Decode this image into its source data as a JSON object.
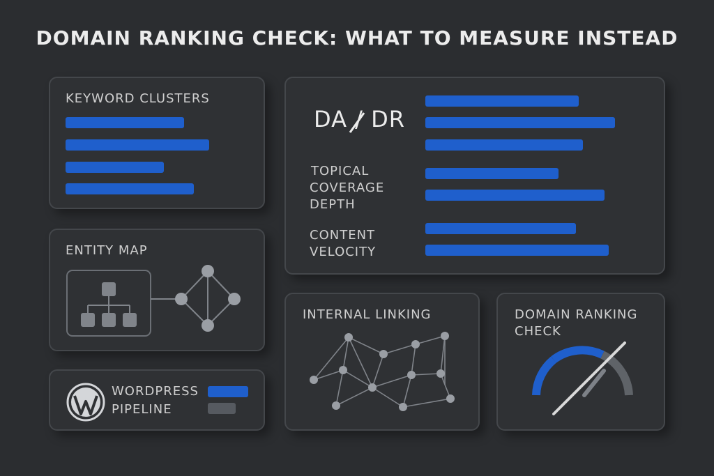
{
  "title": "DOMAIN RANKING CHECK: WHAT TO MEASURE INSTEAD",
  "colors": {
    "background": "#2b2d30",
    "card": "#2f3134",
    "accent": "#1f5fcc",
    "muted": "#9a9ea4"
  },
  "keyword_clusters": {
    "label": "KEYWORD CLUSTERS"
  },
  "entity_map": {
    "label": "ENTITY MAP"
  },
  "wordpress": {
    "label_line1": "WORDPRESS",
    "label_line2": "PIPELINE",
    "icon": "wordpress-logo-icon"
  },
  "metrics": {
    "da_dr": "DA / DR",
    "topical_line1": "TOPICAL",
    "topical_line2": "COVERAGE",
    "topical_line3": "DEPTH",
    "velocity_line1": "CONTENT",
    "velocity_line2": "VELOCITY"
  },
  "internal_linking": {
    "label": "INTERNAL LINKING"
  },
  "domain_check": {
    "label_line1": "DOMAIN RANKING",
    "label_line2": "CHECK",
    "icon": "crossed-out-gauge-icon"
  }
}
